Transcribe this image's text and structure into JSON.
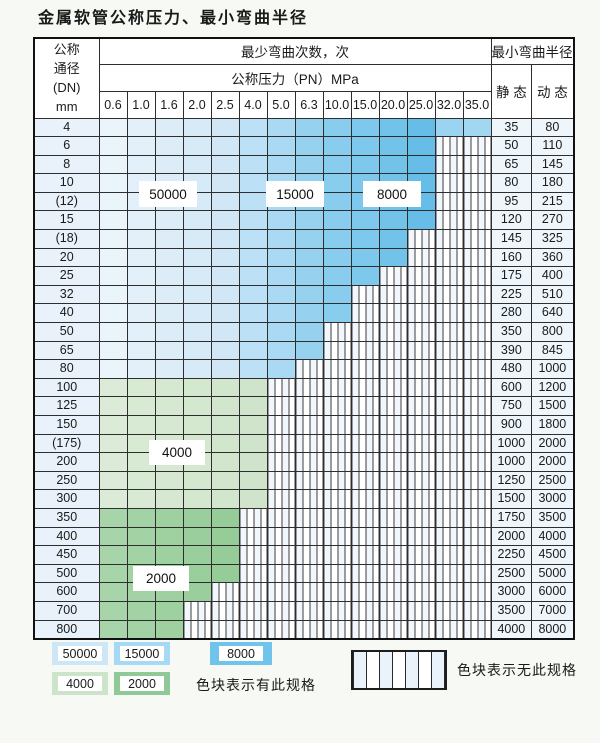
{
  "title": "金属软管公称压力、最小弯曲半径",
  "table": {
    "corner_lines": [
      "公称",
      "通径",
      "(DN)",
      "mm"
    ],
    "bend_times_header": "最少弯曲次数，次",
    "pressure_header": "公称压力（PN）MPa",
    "radius_header": "最小弯曲半径",
    "static_label": "静 态",
    "dynamic_label": "动 态",
    "pressure_cols": [
      "0.6",
      "1.0",
      "1.6",
      "2.0",
      "2.5",
      "4.0",
      "5.0",
      "6.3",
      "10.0",
      "15.0",
      "20.0",
      "25.0",
      "32.0",
      "35.0"
    ],
    "rows": [
      {
        "dn": "4",
        "group": "blue",
        "last_col": 13,
        "static": "35",
        "dynamic": "80"
      },
      {
        "dn": "6",
        "group": "blue",
        "last_col": 11,
        "static": "50",
        "dynamic": "110"
      },
      {
        "dn": "8",
        "group": "blue",
        "last_col": 11,
        "static": "65",
        "dynamic": "145"
      },
      {
        "dn": "10",
        "group": "blue",
        "last_col": 11,
        "static": "80",
        "dynamic": "180"
      },
      {
        "dn": "(12)",
        "group": "blue",
        "last_col": 11,
        "static": "95",
        "dynamic": "215"
      },
      {
        "dn": "15",
        "group": "blue",
        "last_col": 11,
        "static": "120",
        "dynamic": "270"
      },
      {
        "dn": "(18)",
        "group": "blue",
        "last_col": 10,
        "static": "145",
        "dynamic": "325"
      },
      {
        "dn": "20",
        "group": "blue",
        "last_col": 10,
        "static": "160",
        "dynamic": "360"
      },
      {
        "dn": "25",
        "group": "blue",
        "last_col": 9,
        "static": "175",
        "dynamic": "400"
      },
      {
        "dn": "32",
        "group": "blue",
        "last_col": 8,
        "static": "225",
        "dynamic": "510"
      },
      {
        "dn": "40",
        "group": "blue",
        "last_col": 8,
        "static": "280",
        "dynamic": "640"
      },
      {
        "dn": "50",
        "group": "blue",
        "last_col": 7,
        "static": "350",
        "dynamic": "800"
      },
      {
        "dn": "65",
        "group": "blue",
        "last_col": 7,
        "static": "390",
        "dynamic": "845"
      },
      {
        "dn": "80",
        "group": "blue",
        "last_col": 6,
        "static": "480",
        "dynamic": "1000"
      },
      {
        "dn": "100",
        "group": "green4000",
        "last_col": 5,
        "static": "600",
        "dynamic": "1200"
      },
      {
        "dn": "125",
        "group": "green4000",
        "last_col": 5,
        "static": "750",
        "dynamic": "1500"
      },
      {
        "dn": "150",
        "group": "green4000",
        "last_col": 5,
        "static": "900",
        "dynamic": "1800"
      },
      {
        "dn": "(175)",
        "group": "green4000",
        "last_col": 5,
        "static": "1000",
        "dynamic": "2000"
      },
      {
        "dn": "200",
        "group": "green4000",
        "last_col": 5,
        "static": "1000",
        "dynamic": "2000"
      },
      {
        "dn": "250",
        "group": "green4000",
        "last_col": 5,
        "static": "1250",
        "dynamic": "2500"
      },
      {
        "dn": "300",
        "group": "green4000",
        "last_col": 5,
        "static": "1500",
        "dynamic": "3000"
      },
      {
        "dn": "350",
        "group": "green2000",
        "last_col": 4,
        "static": "1750",
        "dynamic": "3500"
      },
      {
        "dn": "400",
        "group": "green2000",
        "last_col": 4,
        "static": "2000",
        "dynamic": "4000"
      },
      {
        "dn": "450",
        "group": "green2000",
        "last_col": 4,
        "static": "2250",
        "dynamic": "4500"
      },
      {
        "dn": "500",
        "group": "green2000",
        "last_col": 4,
        "static": "2500",
        "dynamic": "5000"
      },
      {
        "dn": "600",
        "group": "green2000",
        "last_col": 3,
        "static": "3000",
        "dynamic": "6000"
      },
      {
        "dn": "700",
        "group": "green2000",
        "last_col": 2,
        "static": "3500",
        "dynamic": "7000"
      },
      {
        "dn": "800",
        "group": "green2000",
        "last_col": 2,
        "static": "4000",
        "dynamic": "8000"
      }
    ]
  },
  "overlay_labels": {
    "blue_50000": "50000",
    "blue_15000": "15000",
    "blue_8000": "8000",
    "green_4000": "4000",
    "green_2000": "2000"
  },
  "colors": {
    "blue_cells": [
      "#e9f4fb",
      "#e3f0fa",
      "#ddedf8",
      "#d7eaf7",
      "#d1e7f5",
      "#bce0f5",
      "#aad9f3",
      "#97d1f0",
      "#89cdee",
      "#7dc8ec",
      "#71c3ea",
      "#66bee8",
      "#9bd4f1",
      "#a2d7f2"
    ],
    "green4000_cells": [
      "#dcebd7",
      "#d9ead4",
      "#d7e8d2",
      "#d4e7cf",
      "#d2e5cd",
      "#cfe4ca"
    ],
    "green2000_cells": [
      "#a8d4aa",
      "#a3d2a5",
      "#9ed0a0",
      "#9ace9c",
      "#95cc97"
    ]
  },
  "legend": {
    "items": [
      {
        "value": "50000",
        "color": "#cde7f7"
      },
      {
        "value": "15000",
        "color": "#a6d9f4"
      },
      {
        "value": "8000",
        "color": "#70c3ea"
      },
      {
        "value": "4000",
        "color": "#cce4c9"
      },
      {
        "value": "2000",
        "color": "#8fc997"
      }
    ],
    "has_spec_text": "色块表示有此规格",
    "no_spec_text": "色块表示无此规格"
  }
}
